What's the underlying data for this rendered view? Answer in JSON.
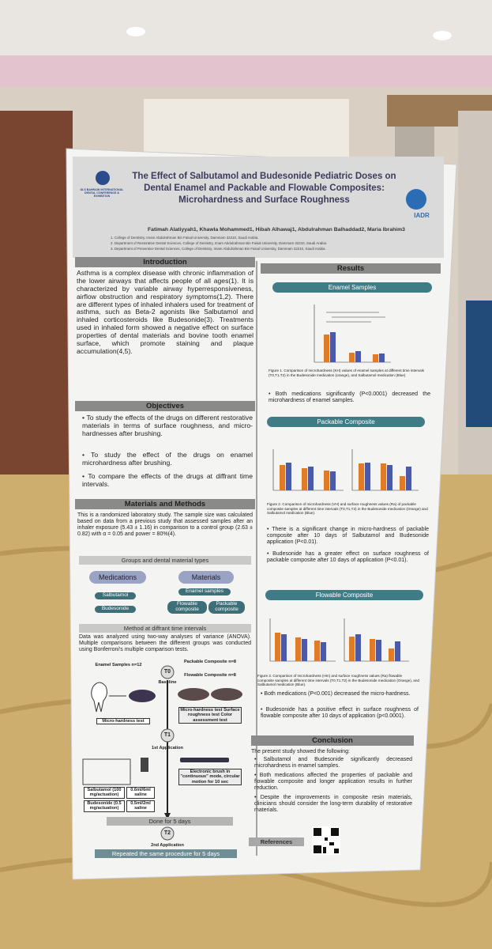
{
  "header": {
    "logo_left": "DLS BAHRAIN INTERNATIONAL DENTAL CONFERENCE & EXHIBITION",
    "title": "The Effect of Salbutamol and Budesonide Pediatric Doses on Dental Enamel and Packable and Flowable Composites: Microhardness and Surface Roughness",
    "logo_right": "IADR",
    "authors": "Fatimah Alatiyyah1, Khawla Mohammed1, Hibah Alhawaj1, Abdulrahman Balhaddad2, Maria Ibrahim3",
    "affiliations": [
      "1. College of Dentistry, Imam Abdulrahman Bin Faisal University, Dammam 32210, Saudi Arabia.",
      "2. Department of Restorative Dental Sciences, College of Dentistry, Imam Abdulrahman Bin Faisal University, Dammam 32210, Saudi Arabia.",
      "3. Department of Preventive Dental Sciences, College of Dentistry, Imam Abdulrahman Bin Faisal University, Dammam 32210, Saudi Arabia."
    ]
  },
  "introduction": {
    "heading": "Introduction",
    "text": "Asthma is a complex disease with chronic inflammation of the lower airways that affects people of all ages(1). It is characterized by variable airway hyperresponsiveness, airflow obstruction and respiratory symptoms(1,2). There are different types of inhaled inhalers used for treatment of asthma, such as Beta-2 agonists like Salbutamol and inhaled corticosteroids like Budesonide(3). Treatments used in inhaled form showed a negative effect on surface properties of dental materials and bovine tooth enamel surface, which promote staining and plaque accumulation(4,5)."
  },
  "objectives": {
    "heading": "Objectives",
    "items": [
      "To study the effects of the drugs on different restorative materials in terms of surface roughness, and micro-hardnesses after brushing.",
      "To study the effect of the drugs on enamel microhardness after brushing.",
      "To compare the effects of the drugs at diffrant time intervals."
    ]
  },
  "methods": {
    "heading": "Materials and Methods",
    "text": "This is a randomized laboratory study. The sample size was calculated based on data from a previous study that assessed samples after an inhaler exposure (5.43 ± 1.16) in comparison to a control group (2.63 ± 0.82) with α = 0.05 and power = 80%(4).",
    "groups_heading": "Groups and dental material types",
    "medications_label": "Medications",
    "medications": [
      "Salbutamol",
      "Budesonide"
    ],
    "materials_label": "Materials",
    "materials": [
      "Enamel samples",
      "Flowable composite",
      "Packable composite"
    ],
    "intervals_heading": "Method at diffrant time intervals",
    "intervals_text": "Data was analyzed using two-way analyses of variance (ANOVA). Multiple comparisons between the different groups was conducted using Bonferroni's multiple comparison tests.",
    "diagram": {
      "enamel": "Enamel Samples n=12",
      "packable": "Packable Composite n=8",
      "flowable": "Flowable Composite n=8",
      "t0": "T0",
      "baseline": "Baseline",
      "test_enamel": "Micro-hardness test",
      "test_composite": "Micro-hardness test Surface roughness test Color assessment test",
      "t1": "T1",
      "first": "1st Application",
      "brush": "Electronic brush in \"continuous\" mode, circular motion for 10 sec",
      "salbutamol": "Salbutamol (100 mg/actuation)",
      "salbutamol_dose": "0.6ml/6ml saline",
      "budesonide": "Budesonide (0.5 mg/actuation)",
      "budesonide_dose": "0.5ml/2ml saline",
      "done": "Done for 5 days",
      "t2": "T2",
      "second": "2nd Application",
      "repeat": "Repeated the same procedure for 5 days"
    }
  },
  "results": {
    "heading": "Results",
    "enamel": {
      "heading": "Enamel Samples",
      "caption": "Figure 1. Comparison of microhardness (KH) values of enamel samples at different time intervals (T0,T1,T2) in the Budesonide medication (orange), and Salbutamol medication (Blue)",
      "bullets": [
        "Both medications significantly (P<0.0001) decreased the microhardness of enamel samples."
      ]
    },
    "packable": {
      "heading": "Packable Composite",
      "caption": "Figure 2. Comparison of microhardness (VH) and surface roughness values (Ra) of packable composite samples at different time intervals (T0,T1,T2) in the Budesonide medication (Orange) and Salbutamol medication (Blue).",
      "bullets": [
        "There is a significant change in micro-hardness of packable composite after 10 days of Salbutamol and Budesonide application (P<0.01).",
        "Budesonide has a greater effect on surface roughness of packable composite after 10 days of application (P<0.01)."
      ]
    },
    "flowable": {
      "heading": "Flowable Composite",
      "caption": "Figure 3. Comparison of microhardness (Hm) and surface roughness values (Ra) flowable composite samples at different time intervals (T0,T1,T2) in the Budesonide medication (Orange), and Salbutamol medication (Blue).",
      "bullets": [
        "Both medications (P<0.001) decreased the micro-hardness.",
        "Budesonide has a positive effect in surface roughness of flowable composite after 10 days of application (p<0.0001)."
      ]
    }
  },
  "conclusion": {
    "heading": "Conclusion",
    "intro": "The present study showed the following:",
    "items": [
      "Salbutamol and Budesonide significantly decreased microhardness in enamel samples.",
      "Both medications affected the properties of packable and flowable composite and longer application results in further reduction.",
      "Despite the improvements in composite resin materials, clinicians should consider the long-term durability of restorative materials."
    ]
  },
  "references": "References"
}
